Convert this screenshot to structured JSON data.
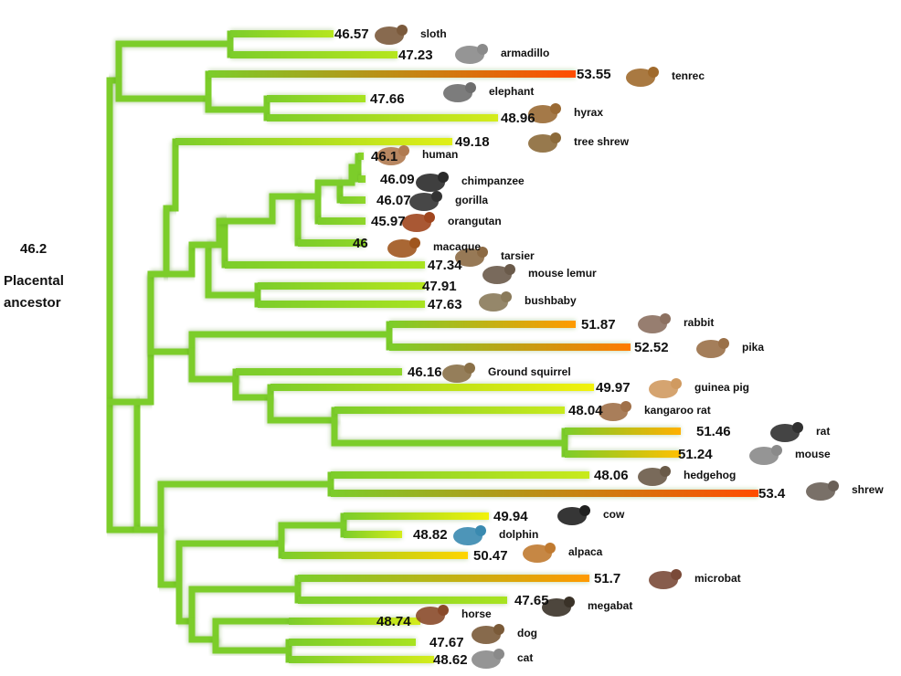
{
  "root": {
    "value": "46.2",
    "label_line1": "Placental",
    "label_line2": "ancestor"
  },
  "leaves": [
    {
      "value": "46.57",
      "name": "sloth",
      "color": "#b5e61d",
      "icon": "sloth-icon"
    },
    {
      "value": "47.23",
      "name": "armadillo",
      "color": "#b5e61d",
      "icon": "armadillo-icon"
    },
    {
      "value": "53.55",
      "name": "tenrec",
      "color": "#ff4d00",
      "icon": "tenrec-icon"
    },
    {
      "value": "47.66",
      "name": "elephant",
      "color": "#a8e320",
      "icon": "elephant-icon"
    },
    {
      "value": "48.96",
      "name": "hyrax",
      "color": "#d4ec1a",
      "icon": "hyrax-icon"
    },
    {
      "value": "49.18",
      "name": "tree shrew",
      "color": "#e0ef16",
      "icon": "tree-shrew-icon"
    },
    {
      "value": "46.1",
      "name": "human",
      "color": "#8fd62a",
      "icon": "human-icon"
    },
    {
      "value": "46.09",
      "name": "chimpanzee",
      "color": "#8fd62a",
      "icon": "chimpanzee-icon"
    },
    {
      "value": "46.07",
      "name": "gorilla",
      "color": "#8fd62a",
      "icon": "gorilla-icon"
    },
    {
      "value": "45.97",
      "name": "orangutan",
      "color": "#8fd62a",
      "icon": "orangutan-icon"
    },
    {
      "value": "46",
      "name": "macaque",
      "color": "#8fd62a",
      "icon": "macaque-icon"
    },
    {
      "value": "47.34",
      "name": "tarsier",
      "color": "#a8e320",
      "icon": "tarsier-icon"
    },
    {
      "value": "47.91",
      "name": "mouse lemur",
      "color": "#b5e61d",
      "icon": "mouse-lemur-icon"
    },
    {
      "value": "47.63",
      "name": "bushbaby",
      "color": "#a8e320",
      "icon": "bushbaby-icon"
    },
    {
      "value": "51.87",
      "name": "rabbit",
      "color": "#ff9a00",
      "icon": "rabbit-icon"
    },
    {
      "value": "52.52",
      "name": "pika",
      "color": "#ff7a00",
      "icon": "pika-icon"
    },
    {
      "value": "46.16",
      "name": "Ground squirrel",
      "color": "#8fd62a",
      "icon": "ground-squirrel-icon"
    },
    {
      "value": "49.97",
      "name": "guinea pig",
      "color": "#f2f20a",
      "icon": "guinea-pig-icon"
    },
    {
      "value": "48.04",
      "name": "kangaroo rat",
      "color": "#c8ea1c",
      "icon": "kangaroo-rat-icon"
    },
    {
      "value": "51.46",
      "name": "rat",
      "color": "#ffb000",
      "icon": "rat-icon"
    },
    {
      "value": "51.24",
      "name": "mouse",
      "color": "#ffc000",
      "icon": "mouse-icon"
    },
    {
      "value": "48.06",
      "name": "hedgehog",
      "color": "#c8ea1c",
      "icon": "hedgehog-icon"
    },
    {
      "value": "53.4",
      "name": "shrew",
      "color": "#ff4d00",
      "icon": "shrew-icon"
    },
    {
      "value": "49.94",
      "name": "cow",
      "color": "#f2f20a",
      "icon": "cow-icon"
    },
    {
      "value": "48.82",
      "name": "dolphin",
      "color": "#d4ec1a",
      "icon": "dolphin-icon"
    },
    {
      "value": "50.47",
      "name": "alpaca",
      "color": "#ffd400",
      "icon": "alpaca-icon"
    },
    {
      "value": "51.7",
      "name": "microbat",
      "color": "#ff9a00",
      "icon": "microbat-icon"
    },
    {
      "value": "47.65",
      "name": "megabat",
      "color": "#a8e320",
      "icon": "megabat-icon"
    },
    {
      "value": "48.74",
      "name": "horse",
      "color": "#d4ec1a",
      "icon": "horse-icon"
    },
    {
      "value": "47.67",
      "name": "dog",
      "color": "#a8e320",
      "icon": "dog-icon"
    },
    {
      "value": "48.62",
      "name": "cat",
      "color": "#d4ec1a",
      "icon": "cat-icon"
    }
  ],
  "colors": {
    "branch": "#7ccd2a",
    "branch_dark": "#5aa81e",
    "text": "#111111"
  }
}
